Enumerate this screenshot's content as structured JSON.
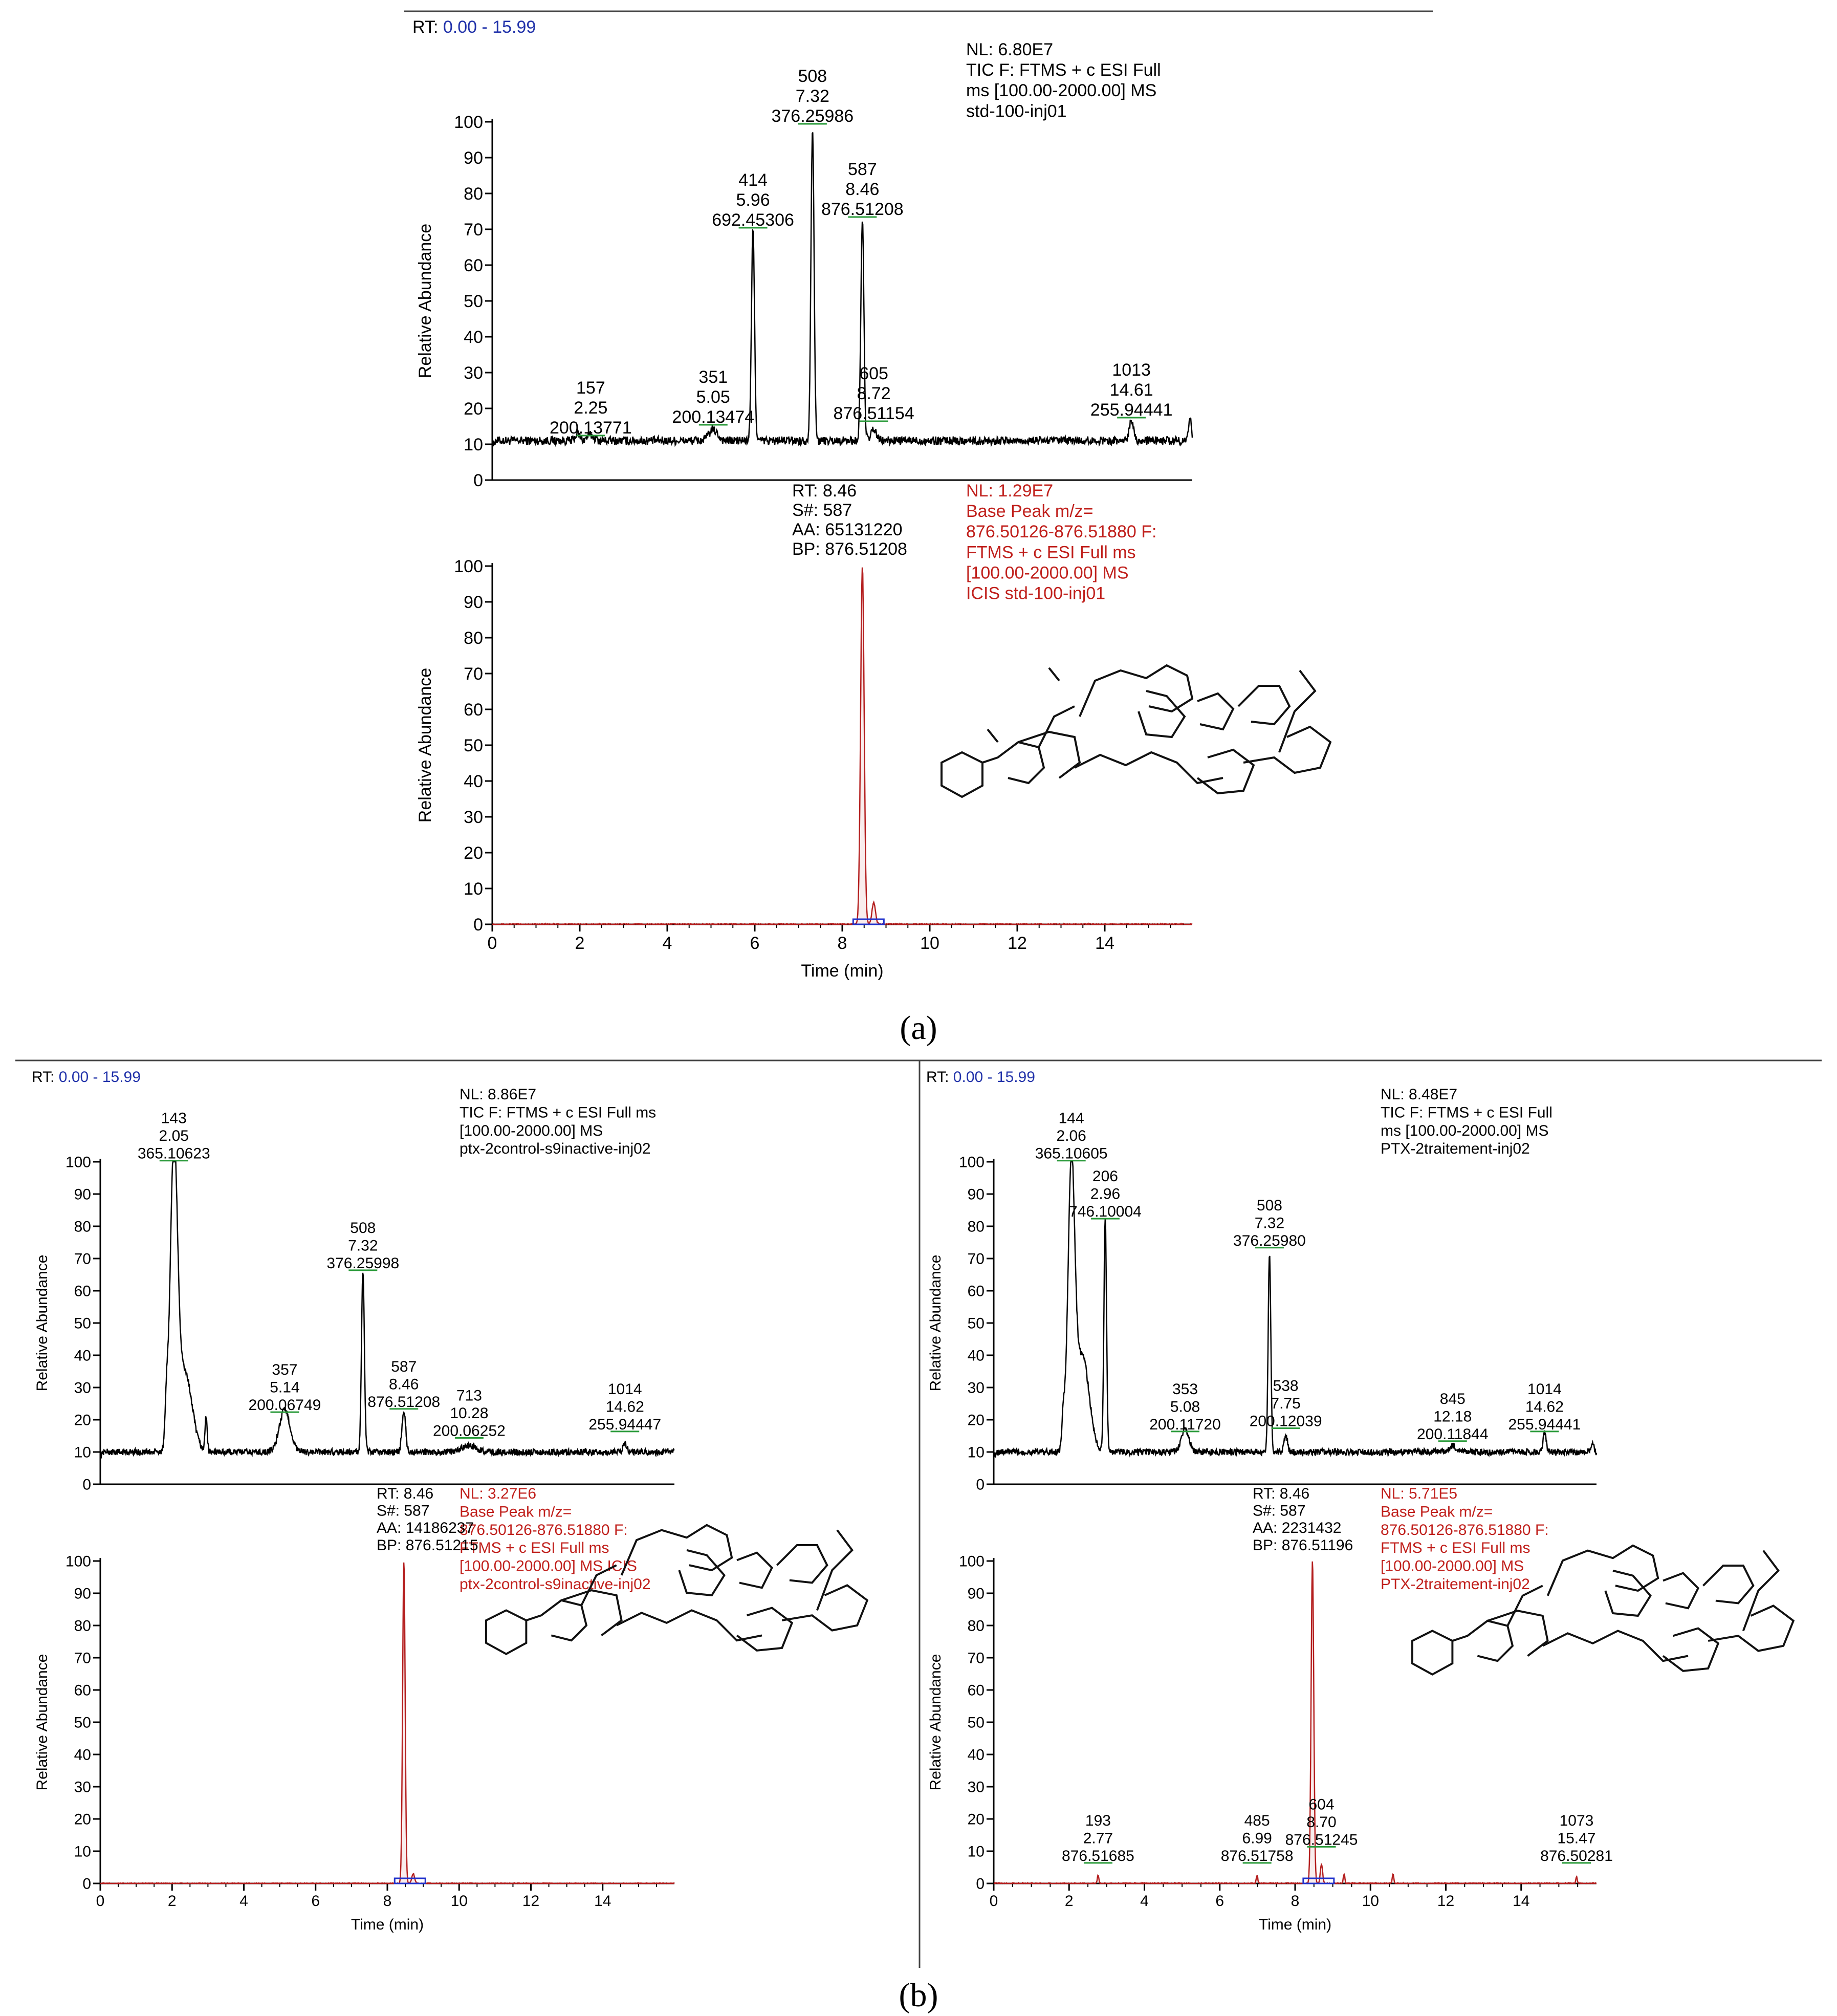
{
  "figure": {
    "label_a": "(a)",
    "label_b": "(b)"
  },
  "chart_data": [
    {
      "id": "a_tic",
      "type": "line",
      "title": "RT: 0.00 - 15.99",
      "rt_prefix": "RT:",
      "rt_range": "0.00 - 15.99",
      "info": [
        "NL: 6.80E7",
        "TIC F: FTMS + c ESI Full",
        "ms [100.00-2000.00]  MS",
        "std-100-inj01"
      ],
      "info_color": "#000000",
      "line_color": "#000000",
      "xlabel": "",
      "ylabel": "Relative Abundance",
      "xlim": [
        0,
        16
      ],
      "ylim": [
        0,
        100
      ],
      "yticks": [
        0,
        10,
        20,
        30,
        40,
        50,
        60,
        70,
        80,
        90,
        100
      ],
      "xticks": [],
      "baseline": 11,
      "noise": 1.2,
      "peaks": [
        {
          "x": 1.95,
          "h": 2,
          "w": 0.05
        },
        {
          "x": 2.25,
          "h": 1.5,
          "w": 0.08
        },
        {
          "x": 5.05,
          "h": 3,
          "w": 0.1
        },
        {
          "x": 5.96,
          "h": 59,
          "w": 0.035
        },
        {
          "x": 7.32,
          "h": 88,
          "w": 0.035
        },
        {
          "x": 8.46,
          "h": 62,
          "w": 0.035
        },
        {
          "x": 8.72,
          "h": 3,
          "w": 0.06
        },
        {
          "x": 14.61,
          "h": 6,
          "w": 0.05
        },
        {
          "x": 15.95,
          "h": 6,
          "w": 0.03
        }
      ],
      "annotations": [
        {
          "x": 2.25,
          "y": 13,
          "lines": [
            "157",
            "2.25",
            "200.13771"
          ]
        },
        {
          "x": 5.05,
          "y": 16,
          "lines": [
            "351",
            "5.05",
            "200.13474"
          ]
        },
        {
          "x": 5.96,
          "y": 71,
          "lines": [
            "414",
            "5.96",
            "692.45306"
          ]
        },
        {
          "x": 7.32,
          "y": 100,
          "lines": [
            "508",
            "7.32",
            "376.25986"
          ]
        },
        {
          "x": 8.46,
          "y": 74,
          "lines": [
            "587",
            "8.46",
            "876.51208"
          ]
        },
        {
          "x": 8.72,
          "y": 17,
          "lines": [
            "605",
            "8.72",
            "876.51154"
          ]
        },
        {
          "x": 14.61,
          "y": 18,
          "lines": [
            "1013",
            "14.61",
            "255.94441"
          ]
        }
      ]
    },
    {
      "id": "a_xic",
      "type": "line",
      "info": [
        "NL: 1.29E7",
        "Base Peak m/z=",
        "876.50126-876.51880 F:",
        "FTMS + c ESI Full ms",
        "[100.00-2000.00]  MS",
        "ICIS std-100-inj01"
      ],
      "info_color": "#c0201c",
      "peak_info": [
        "RT: 8.46",
        "S#: 587",
        "AA: 65131220",
        "BP: 876.51208"
      ],
      "line_color": "#b41f1f",
      "xlabel": "Time (min)",
      "ylabel": "Relative Abundance",
      "xlim": [
        0,
        16
      ],
      "ylim": [
        0,
        100
      ],
      "yticks": [
        0,
        10,
        20,
        30,
        40,
        50,
        60,
        70,
        80,
        90,
        100
      ],
      "xticks": [
        0,
        2,
        4,
        6,
        8,
        10,
        12,
        14
      ],
      "baseline": 0,
      "noise": 0.2,
      "peaks": [
        {
          "x": 8.46,
          "h": 100,
          "w": 0.04
        },
        {
          "x": 8.72,
          "h": 6,
          "w": 0.04
        }
      ],
      "annotations": []
    },
    {
      "id": "b_left_tic",
      "type": "line",
      "title": "RT: 0.00 - 15.99",
      "rt_prefix": "RT:",
      "rt_range": "0.00 - 15.99",
      "info": [
        "NL: 8.86E7",
        "TIC F: FTMS + c ESI Full ms",
        "[100.00-2000.00]  MS",
        "ptx-2control-s9inactive-inj02"
      ],
      "info_color": "#000000",
      "line_color": "#000000",
      "xlabel": "",
      "ylabel": "Relative Abundance",
      "xlim": [
        0,
        16
      ],
      "ylim": [
        0,
        100
      ],
      "yticks": [
        0,
        10,
        20,
        30,
        40,
        50,
        60,
        70,
        80,
        90,
        100
      ],
      "xticks": [],
      "baseline": 10,
      "noise": 1.0,
      "peaks": [
        {
          "x": 1.85,
          "h": 12,
          "w": 0.04
        },
        {
          "x": 2.05,
          "h": 90,
          "w": 0.1
        },
        {
          "x": 2.35,
          "h": 25,
          "w": 0.2
        },
        {
          "x": 2.95,
          "h": 11,
          "w": 0.03
        },
        {
          "x": 5.14,
          "h": 13,
          "w": 0.15
        },
        {
          "x": 7.32,
          "h": 56,
          "w": 0.04
        },
        {
          "x": 8.46,
          "h": 13,
          "w": 0.05
        },
        {
          "x": 10.28,
          "h": 2,
          "w": 0.2
        },
        {
          "x": 14.62,
          "h": 3,
          "w": 0.05
        }
      ],
      "annotations": [
        {
          "x": 2.05,
          "y": 101,
          "lines": [
            "143",
            "2.05",
            "365.10623"
          ]
        },
        {
          "x": 5.14,
          "y": 23,
          "lines": [
            "357",
            "5.14",
            "200.06749"
          ]
        },
        {
          "x": 7.32,
          "y": 67,
          "lines": [
            "508",
            "7.32",
            "376.25998"
          ]
        },
        {
          "x": 8.46,
          "y": 24,
          "lines": [
            "587",
            "8.46",
            "876.51208"
          ]
        },
        {
          "x": 10.28,
          "y": 15,
          "lines": [
            "713",
            "10.28",
            "200.06252"
          ]
        },
        {
          "x": 14.62,
          "y": 17,
          "lines": [
            "1014",
            "14.62",
            "255.94447"
          ]
        }
      ]
    },
    {
      "id": "b_left_xic",
      "type": "line",
      "info": [
        "NL: 3.27E6",
        "Base Peak m/z=",
        "876.50126-876.51880 F:",
        "FTMS + c ESI Full ms",
        "[100.00-2000.00]  MS  ICIS",
        "ptx-2control-s9inactive-inj02"
      ],
      "info_color": "#c0201c",
      "peak_info": [
        "RT: 8.46",
        "S#: 587",
        "AA: 14186237",
        "BP: 876.51215"
      ],
      "line_color": "#b41f1f",
      "xlabel": "Time (min)",
      "ylabel": "Relative Abundance",
      "xlim": [
        0,
        16
      ],
      "ylim": [
        0,
        100
      ],
      "yticks": [
        0,
        10,
        20,
        30,
        40,
        50,
        60,
        70,
        80,
        90,
        100
      ],
      "xticks": [
        0,
        2,
        4,
        6,
        8,
        10,
        12,
        14
      ],
      "baseline": 0,
      "noise": 0.15,
      "peaks": [
        {
          "x": 8.46,
          "h": 100,
          "w": 0.035
        },
        {
          "x": 8.72,
          "h": 3,
          "w": 0.04
        }
      ],
      "annotations": []
    },
    {
      "id": "b_right_tic",
      "type": "line",
      "title": "RT: 0.00 - 15.99",
      "rt_prefix": "RT:",
      "rt_range": "0.00 - 15.99",
      "info": [
        "NL: 8.48E7",
        "TIC F: FTMS + c ESI Full",
        "ms [100.00-2000.00]  MS",
        "PTX-2traitement-inj02"
      ],
      "info_color": "#000000",
      "line_color": "#000000",
      "xlabel": "",
      "ylabel": "Relative Abundance",
      "xlim": [
        0,
        16
      ],
      "ylim": [
        0,
        100
      ],
      "yticks": [
        0,
        10,
        20,
        30,
        40,
        50,
        60,
        70,
        80,
        90,
        100
      ],
      "xticks": [],
      "baseline": 10,
      "noise": 1.0,
      "peaks": [
        {
          "x": 1.85,
          "h": 10,
          "w": 0.04
        },
        {
          "x": 2.06,
          "h": 85,
          "w": 0.09
        },
        {
          "x": 2.35,
          "h": 30,
          "w": 0.18
        },
        {
          "x": 2.96,
          "h": 72,
          "w": 0.035
        },
        {
          "x": 5.08,
          "h": 7,
          "w": 0.1
        },
        {
          "x": 7.32,
          "h": 62,
          "w": 0.035
        },
        {
          "x": 7.75,
          "h": 5,
          "w": 0.05
        },
        {
          "x": 12.18,
          "h": 2,
          "w": 0.1
        },
        {
          "x": 14.62,
          "h": 6,
          "w": 0.04
        },
        {
          "x": 15.9,
          "h": 3,
          "w": 0.03
        }
      ],
      "annotations": [
        {
          "x": 2.06,
          "y": 101,
          "lines": [
            "144",
            "2.06",
            "365.10605"
          ]
        },
        {
          "x": 2.96,
          "y": 83,
          "lines": [
            "206",
            "2.96",
            "746.10004"
          ]
        },
        {
          "x": 5.08,
          "y": 17,
          "lines": [
            "353",
            "5.08",
            "200.11720"
          ]
        },
        {
          "x": 7.32,
          "y": 74,
          "lines": [
            "508",
            "7.32",
            "376.25980"
          ]
        },
        {
          "x": 7.75,
          "y": 18,
          "lines": [
            "538",
            "7.75",
            "200.12039"
          ]
        },
        {
          "x": 12.18,
          "y": 14,
          "lines": [
            "845",
            "12.18",
            "200.11844"
          ]
        },
        {
          "x": 14.62,
          "y": 17,
          "lines": [
            "1014",
            "14.62",
            "255.94441"
          ]
        }
      ]
    },
    {
      "id": "b_right_xic",
      "type": "line",
      "info": [
        "NL: 5.71E5",
        "Base Peak m/z=",
        "876.50126-876.51880 F:",
        "FTMS + c ESI Full ms",
        "[100.00-2000.00]  MS",
        "PTX-2traitement-inj02"
      ],
      "info_color": "#c0201c",
      "peak_info": [
        "RT: 8.46",
        "S#: 587",
        "AA: 2231432",
        "BP: 876.51196"
      ],
      "line_color": "#b41f1f",
      "xlabel": "Time (min)",
      "ylabel": "Relative Abundance",
      "xlim": [
        0,
        16
      ],
      "ylim": [
        0,
        100
      ],
      "yticks": [
        0,
        10,
        20,
        30,
        40,
        50,
        60,
        70,
        80,
        90,
        100
      ],
      "xticks": [
        0,
        2,
        4,
        6,
        8,
        10,
        12,
        14
      ],
      "baseline": 0,
      "noise": 0.2,
      "peaks": [
        {
          "x": 2.77,
          "h": 2.5,
          "w": 0.02
        },
        {
          "x": 6.99,
          "h": 2.5,
          "w": 0.02
        },
        {
          "x": 8.46,
          "h": 100,
          "w": 0.035
        },
        {
          "x": 8.7,
          "h": 6,
          "w": 0.03
        },
        {
          "x": 9.3,
          "h": 3,
          "w": 0.02
        },
        {
          "x": 10.6,
          "h": 3,
          "w": 0.02
        },
        {
          "x": 15.47,
          "h": 2,
          "w": 0.02
        }
      ],
      "annotations": [
        {
          "x": 2.77,
          "y": 7,
          "lines": [
            "193",
            "2.77",
            "876.51685"
          ]
        },
        {
          "x": 6.99,
          "y": 7,
          "lines": [
            "485",
            "6.99",
            "876.51758"
          ]
        },
        {
          "x": 8.7,
          "y": 12,
          "lines": [
            "604",
            "8.70",
            "876.51245"
          ]
        },
        {
          "x": 15.47,
          "y": 7,
          "lines": [
            "1073",
            "15.47",
            "876.50281"
          ]
        }
      ]
    }
  ]
}
